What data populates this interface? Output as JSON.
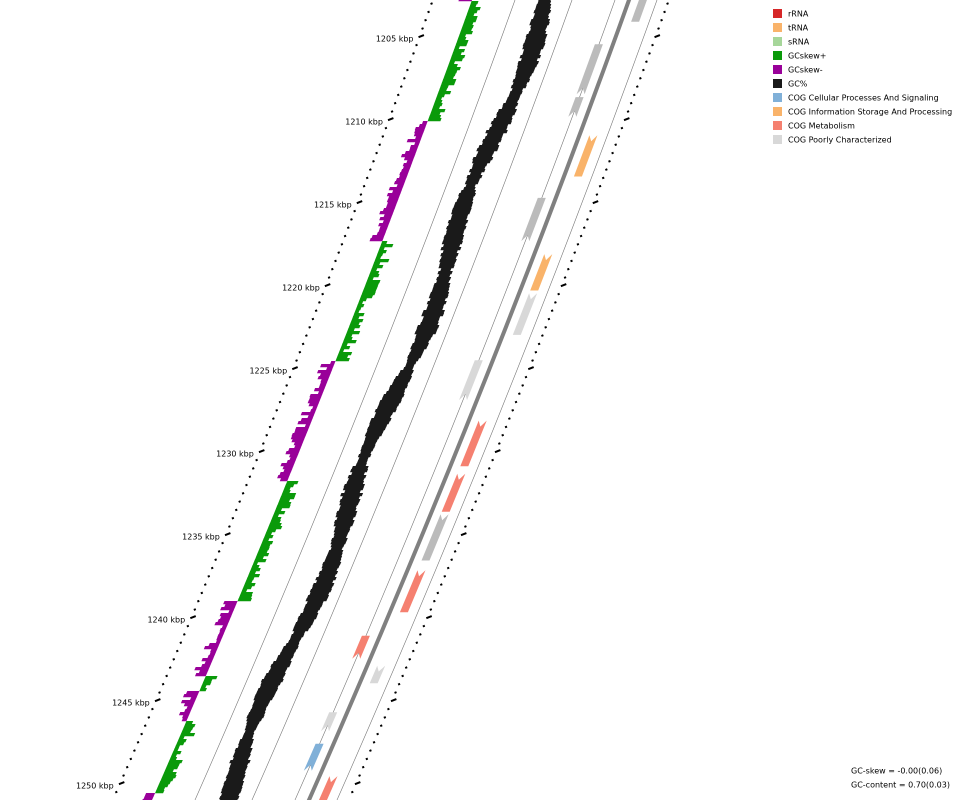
{
  "ruler": {
    "labels": [
      "1205 kbp",
      "1210 kbp",
      "1215 kbp",
      "1220 kbp",
      "1225 kbp",
      "1230 kbp",
      "1235 kbp",
      "1240 kbp",
      "1245 kbp",
      "1250 kbp"
    ]
  },
  "legend": [
    {
      "label": "rRNA",
      "color": "#d62728"
    },
    {
      "label": "tRNA",
      "color": "#f9b36a"
    },
    {
      "label": "sRNA",
      "color": "#a6d69a"
    },
    {
      "label": "GCskew+",
      "color": "#0a9a0a"
    },
    {
      "label": "GCskew-",
      "color": "#990099"
    },
    {
      "label": "GC%",
      "color": "#1a1a1a"
    },
    {
      "label": "COG Cellular Processes And Signaling",
      "color": "#80b0d8"
    },
    {
      "label": "COG Information Storage And Processing",
      "color": "#f9b36a"
    },
    {
      "label": "COG Metabolism",
      "color": "#f58070"
    },
    {
      "label": "COG Poorly Characterized",
      "color": "#d8d8d8"
    }
  ],
  "stats": [
    "GC-skew = -0.00(0.06)",
    "GC-content = 0.70(0.03)"
  ]
}
